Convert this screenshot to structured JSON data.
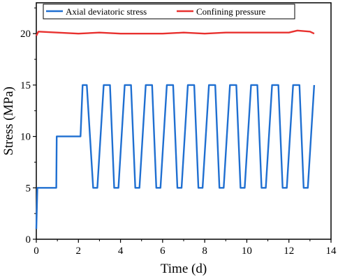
{
  "chart_data": {
    "type": "line",
    "xlabel": "Time (d)",
    "ylabel": "Stress (MPa)",
    "xlim": [
      0,
      14
    ],
    "ylim": [
      0,
      23
    ],
    "xticks": [
      0,
      2,
      4,
      6,
      8,
      10,
      12,
      14
    ],
    "yticks": [
      0,
      5,
      10,
      15,
      20
    ],
    "grid": false,
    "legend_position": "top",
    "series": [
      {
        "name": "Axial deviatoric stress",
        "color": "#1f6fd1",
        "x": [
          0.0,
          0.05,
          0.95,
          0.97,
          2.1,
          2.2,
          2.4,
          2.7,
          2.9,
          3.2,
          3.5,
          3.7,
          3.9,
          4.2,
          4.5,
          4.7,
          4.9,
          5.2,
          5.5,
          5.7,
          5.9,
          6.2,
          6.5,
          6.7,
          6.9,
          7.2,
          7.5,
          7.7,
          7.9,
          8.2,
          8.5,
          8.7,
          8.9,
          9.2,
          9.5,
          9.7,
          9.9,
          10.2,
          10.5,
          10.7,
          10.9,
          11.2,
          11.5,
          11.7,
          11.9,
          12.2,
          12.5,
          12.7,
          12.9,
          13.2
        ],
        "y": [
          1.0,
          5.0,
          5.0,
          10.0,
          10.0,
          15.0,
          15.0,
          5.0,
          5.0,
          15.0,
          15.0,
          5.0,
          5.0,
          15.0,
          15.0,
          5.0,
          5.0,
          15.0,
          15.0,
          5.0,
          5.0,
          15.0,
          15.0,
          5.0,
          5.0,
          15.0,
          15.0,
          5.0,
          5.0,
          15.0,
          15.0,
          5.0,
          5.0,
          15.0,
          15.0,
          5.0,
          5.0,
          15.0,
          15.0,
          5.0,
          5.0,
          15.0,
          15.0,
          5.0,
          5.0,
          15.0,
          15.0,
          5.0,
          5.0,
          15.0
        ]
      },
      {
        "name": "Confining pressure",
        "color": "#e8312f",
        "x": [
          0.0,
          0.1,
          1.0,
          2.0,
          3.0,
          4.0,
          5.0,
          6.0,
          7.0,
          8.0,
          9.0,
          10.0,
          11.0,
          12.0,
          12.4,
          13.0,
          13.2
        ],
        "y": [
          19.8,
          20.2,
          20.1,
          20.0,
          20.1,
          20.0,
          20.0,
          20.0,
          20.1,
          20.0,
          20.1,
          20.1,
          20.1,
          20.1,
          20.3,
          20.2,
          20.0
        ]
      }
    ]
  }
}
